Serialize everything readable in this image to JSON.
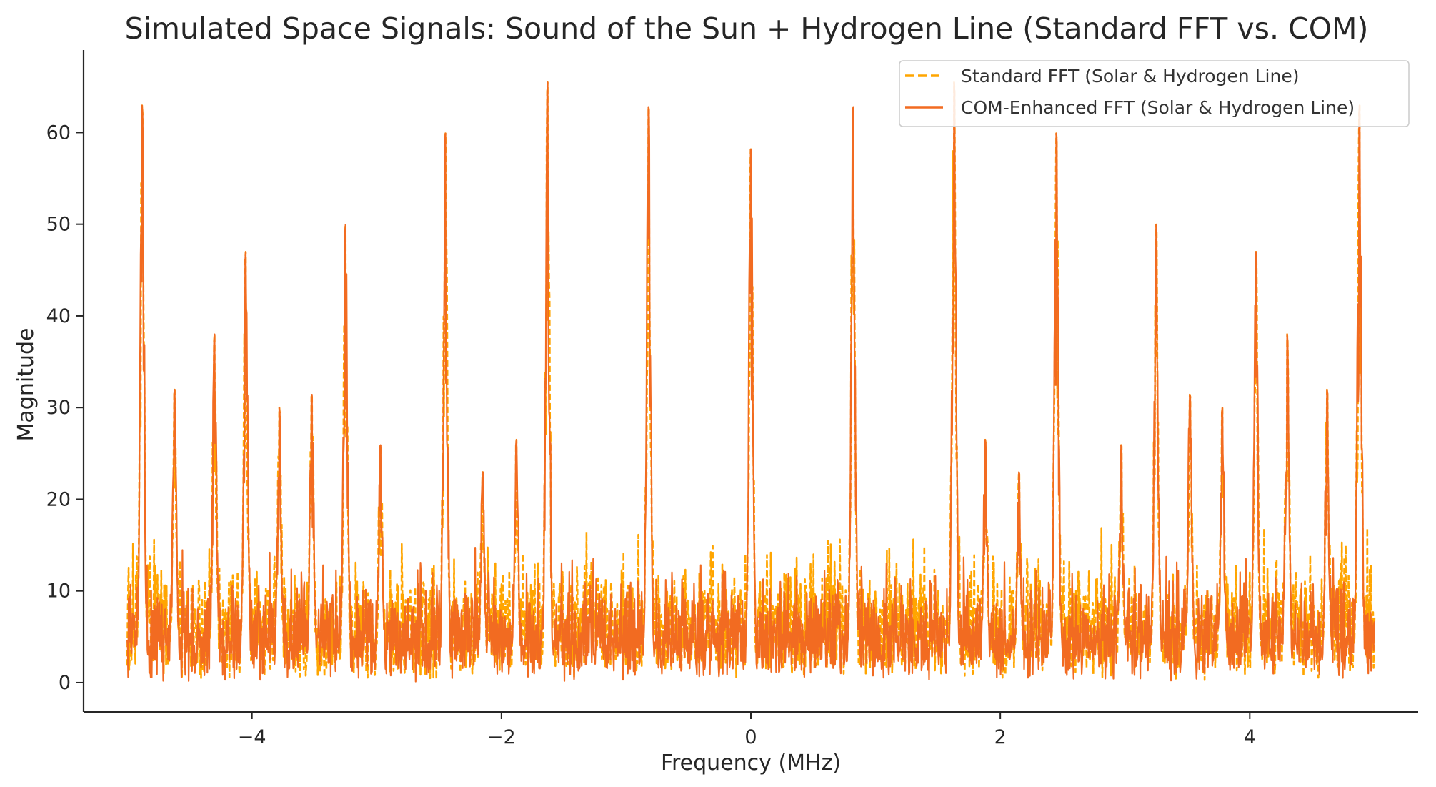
{
  "chart_data": {
    "type": "line",
    "title": "Simulated Space Signals: Sound of the Sun + Hydrogen Line (Standard FFT vs. COM)",
    "xlabel": "Frequency (MHz)",
    "ylabel": "Magnitude",
    "xlim": [
      -5.35,
      5.35
    ],
    "ylim": [
      -3.2,
      69
    ],
    "x_ticks": [
      -4,
      -2,
      0,
      2,
      4
    ],
    "x_tick_labels": [
      "−4",
      "−2",
      "0",
      "2",
      "4"
    ],
    "y_ticks": [
      0,
      10,
      20,
      30,
      40,
      50,
      60
    ],
    "y_tick_labels": [
      "0",
      "10",
      "20",
      "30",
      "40",
      "50",
      "60"
    ],
    "grid": false,
    "legend_position": "top-right",
    "x_range": [
      -5,
      5
    ],
    "series": [
      {
        "name": "Standard FFT (Solar & Hydrogen Line)",
        "color": "#FFA500",
        "style": "dashed",
        "noise_floor": [
          0,
          17
        ],
        "peaks": [
          {
            "x": -4.88,
            "y": 63
          },
          {
            "x": -4.62,
            "y": 32
          },
          {
            "x": -4.3,
            "y": 38
          },
          {
            "x": -4.05,
            "y": 47
          },
          {
            "x": -3.78,
            "y": 30
          },
          {
            "x": -3.52,
            "y": 31.5
          },
          {
            "x": -3.25,
            "y": 50
          },
          {
            "x": -2.97,
            "y": 26
          },
          {
            "x": -2.45,
            "y": 60
          },
          {
            "x": -2.15,
            "y": 23
          },
          {
            "x": -1.88,
            "y": 26.5
          },
          {
            "x": -1.63,
            "y": 65.5
          },
          {
            "x": -0.82,
            "y": 63
          },
          {
            "x": 0.0,
            "y": 58.5
          },
          {
            "x": 0.82,
            "y": 63
          },
          {
            "x": 1.63,
            "y": 65.5
          },
          {
            "x": 1.88,
            "y": 26.5
          },
          {
            "x": 2.15,
            "y": 23
          },
          {
            "x": 2.45,
            "y": 60
          },
          {
            "x": 2.97,
            "y": 26
          },
          {
            "x": 3.25,
            "y": 50
          },
          {
            "x": 3.52,
            "y": 31.5
          },
          {
            "x": 3.78,
            "y": 30
          },
          {
            "x": 4.05,
            "y": 47
          },
          {
            "x": 4.3,
            "y": 38
          },
          {
            "x": 4.62,
            "y": 32
          },
          {
            "x": 4.88,
            "y": 63
          }
        ]
      },
      {
        "name": "COM-Enhanced FFT (Solar & Hydrogen Line)",
        "color": "#F26B21",
        "style": "solid",
        "noise_floor": [
          0,
          15
        ],
        "peaks": [
          {
            "x": -4.88,
            "y": 63
          },
          {
            "x": -4.62,
            "y": 32
          },
          {
            "x": -4.3,
            "y": 38
          },
          {
            "x": -4.05,
            "y": 47
          },
          {
            "x": -3.78,
            "y": 30
          },
          {
            "x": -3.52,
            "y": 31.5
          },
          {
            "x": -3.25,
            "y": 50
          },
          {
            "x": -2.97,
            "y": 26
          },
          {
            "x": -2.45,
            "y": 60
          },
          {
            "x": -2.15,
            "y": 23
          },
          {
            "x": -1.88,
            "y": 26.5
          },
          {
            "x": -1.63,
            "y": 65.5
          },
          {
            "x": -0.82,
            "y": 63
          },
          {
            "x": 0.0,
            "y": 58.5
          },
          {
            "x": 0.82,
            "y": 63
          },
          {
            "x": 1.63,
            "y": 65.5
          },
          {
            "x": 1.88,
            "y": 26.5
          },
          {
            "x": 2.15,
            "y": 23
          },
          {
            "x": 2.45,
            "y": 60
          },
          {
            "x": 2.97,
            "y": 26
          },
          {
            "x": 3.25,
            "y": 50
          },
          {
            "x": 3.52,
            "y": 31.5
          },
          {
            "x": 3.78,
            "y": 30
          },
          {
            "x": 4.05,
            "y": 47
          },
          {
            "x": 4.3,
            "y": 38
          },
          {
            "x": 4.62,
            "y": 32
          },
          {
            "x": 4.88,
            "y": 63
          }
        ]
      }
    ]
  }
}
